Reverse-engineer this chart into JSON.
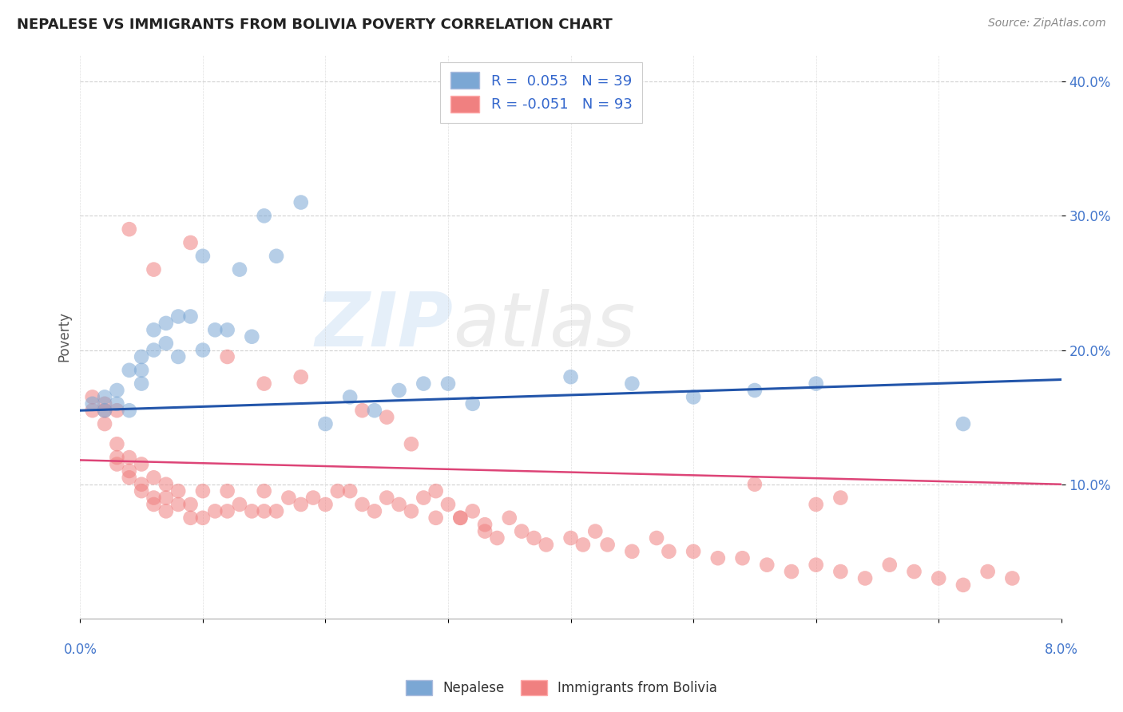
{
  "title": "NEPALESE VS IMMIGRANTS FROM BOLIVIA POVERTY CORRELATION CHART",
  "source": "Source: ZipAtlas.com",
  "ylabel": "Poverty",
  "ytick_values": [
    0.1,
    0.2,
    0.3,
    0.4
  ],
  "ytick_labels": [
    "10.0%",
    "20.0%",
    "30.0%",
    "40.0%"
  ],
  "xlim": [
    0.0,
    0.08
  ],
  "ylim": [
    0.0,
    0.42
  ],
  "legend_blue_r": "R =  0.053",
  "legend_blue_n": "N = 39",
  "legend_pink_r": "R = -0.051",
  "legend_pink_n": "N = 93",
  "blue_color": "#7BA7D4",
  "pink_color": "#F08080",
  "blue_line_color": "#2255AA",
  "pink_line_color": "#DD4477",
  "watermark_zip": "ZIP",
  "watermark_atlas": "atlas",
  "blue_line_x": [
    0.0,
    0.08
  ],
  "blue_line_y": [
    0.155,
    0.178
  ],
  "pink_line_x": [
    0.0,
    0.08
  ],
  "pink_line_y": [
    0.118,
    0.1
  ],
  "nepalese_x": [
    0.001,
    0.002,
    0.002,
    0.003,
    0.003,
    0.004,
    0.004,
    0.005,
    0.005,
    0.005,
    0.006,
    0.006,
    0.007,
    0.007,
    0.008,
    0.008,
    0.009,
    0.01,
    0.01,
    0.011,
    0.012,
    0.013,
    0.014,
    0.015,
    0.016,
    0.018,
    0.02,
    0.022,
    0.024,
    0.026,
    0.028,
    0.03,
    0.032,
    0.04,
    0.045,
    0.05,
    0.055,
    0.06,
    0.072
  ],
  "nepalese_y": [
    0.16,
    0.155,
    0.165,
    0.16,
    0.17,
    0.155,
    0.185,
    0.195,
    0.175,
    0.185,
    0.2,
    0.215,
    0.205,
    0.22,
    0.195,
    0.225,
    0.225,
    0.2,
    0.27,
    0.215,
    0.215,
    0.26,
    0.21,
    0.3,
    0.27,
    0.31,
    0.145,
    0.165,
    0.155,
    0.17,
    0.175,
    0.175,
    0.16,
    0.18,
    0.175,
    0.165,
    0.17,
    0.175,
    0.145
  ],
  "bolivia_x": [
    0.001,
    0.001,
    0.002,
    0.002,
    0.002,
    0.003,
    0.003,
    0.003,
    0.003,
    0.004,
    0.004,
    0.004,
    0.005,
    0.005,
    0.005,
    0.006,
    0.006,
    0.006,
    0.007,
    0.007,
    0.007,
    0.008,
    0.008,
    0.009,
    0.009,
    0.01,
    0.01,
    0.011,
    0.012,
    0.012,
    0.013,
    0.014,
    0.015,
    0.015,
    0.016,
    0.017,
    0.018,
    0.019,
    0.02,
    0.021,
    0.022,
    0.023,
    0.024,
    0.025,
    0.026,
    0.027,
    0.028,
    0.029,
    0.03,
    0.031,
    0.032,
    0.033,
    0.034,
    0.035,
    0.036,
    0.037,
    0.038,
    0.04,
    0.041,
    0.042,
    0.043,
    0.045,
    0.047,
    0.048,
    0.05,
    0.052,
    0.054,
    0.056,
    0.058,
    0.06,
    0.062,
    0.064,
    0.066,
    0.068,
    0.07,
    0.072,
    0.074,
    0.076,
    0.004,
    0.006,
    0.009,
    0.012,
    0.015,
    0.018,
    0.055,
    0.06,
    0.062,
    0.023,
    0.025,
    0.027,
    0.029,
    0.031,
    0.033
  ],
  "bolivia_y": [
    0.155,
    0.165,
    0.145,
    0.155,
    0.16,
    0.115,
    0.12,
    0.13,
    0.155,
    0.105,
    0.11,
    0.12,
    0.095,
    0.1,
    0.115,
    0.085,
    0.09,
    0.105,
    0.08,
    0.09,
    0.1,
    0.085,
    0.095,
    0.075,
    0.085,
    0.075,
    0.095,
    0.08,
    0.08,
    0.095,
    0.085,
    0.08,
    0.08,
    0.095,
    0.08,
    0.09,
    0.085,
    0.09,
    0.085,
    0.095,
    0.095,
    0.085,
    0.08,
    0.09,
    0.085,
    0.08,
    0.09,
    0.075,
    0.085,
    0.075,
    0.08,
    0.065,
    0.06,
    0.075,
    0.065,
    0.06,
    0.055,
    0.06,
    0.055,
    0.065,
    0.055,
    0.05,
    0.06,
    0.05,
    0.05,
    0.045,
    0.045,
    0.04,
    0.035,
    0.04,
    0.035,
    0.03,
    0.04,
    0.035,
    0.03,
    0.025,
    0.035,
    0.03,
    0.29,
    0.26,
    0.28,
    0.195,
    0.175,
    0.18,
    0.1,
    0.085,
    0.09,
    0.155,
    0.15,
    0.13,
    0.095,
    0.075,
    0.07
  ]
}
